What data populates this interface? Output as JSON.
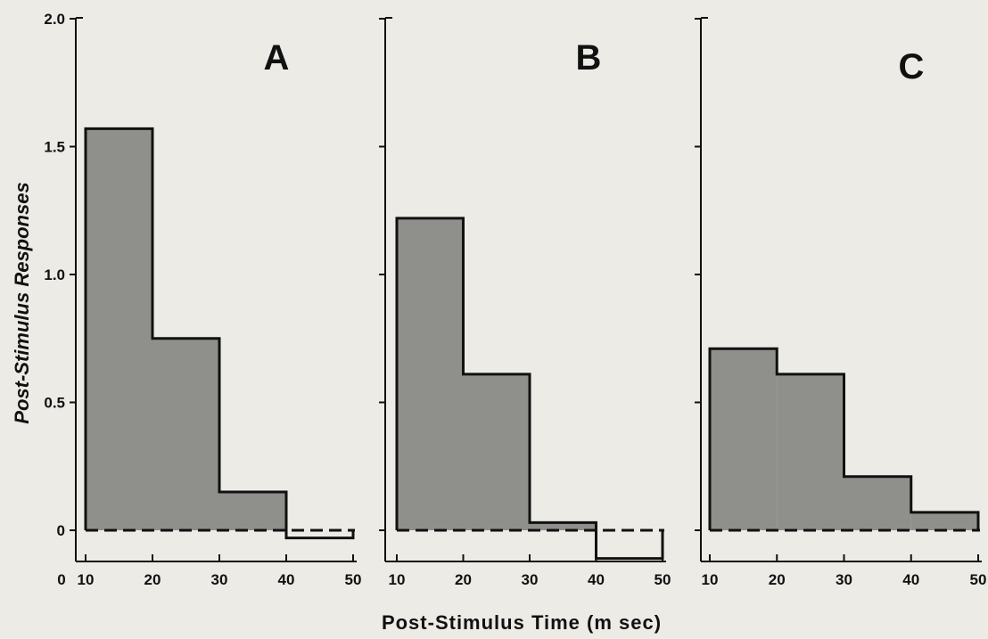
{
  "chart_data": {
    "type": "bar",
    "xlabel": "Post-Stimulus Time (m sec)",
    "ylabel": "Post-Stimulus Responses",
    "ylim": [
      -0.1,
      2.0
    ],
    "y_ticks": [
      "0",
      "0.5",
      "1.0",
      "1.5",
      "2.0"
    ],
    "y_tick_values": [
      0,
      0.5,
      1.0,
      1.5,
      2.0
    ],
    "bin_edges": [
      10,
      20,
      30,
      40,
      50
    ],
    "colors": {
      "bar_fill": "#8f8f8b",
      "line": "#111111"
    },
    "panels": [
      {
        "label": "A",
        "x_tick_labels": [
          "0",
          "10",
          "20",
          "30",
          "40",
          "50"
        ],
        "x_tick_values": [
          0,
          10,
          20,
          30,
          40,
          50
        ],
        "values": [
          1.57,
          0.75,
          0.15,
          -0.03
        ]
      },
      {
        "label": "B",
        "x_tick_labels": [
          "10",
          "20",
          "30",
          "40",
          "50"
        ],
        "x_tick_values": [
          10,
          20,
          30,
          40,
          50
        ],
        "values": [
          1.22,
          0.61,
          0.03,
          -0.11
        ]
      },
      {
        "label": "C",
        "x_tick_labels": [
          "10",
          "20",
          "30",
          "40",
          "50"
        ],
        "x_tick_values": [
          10,
          20,
          30,
          40,
          50
        ],
        "values": [
          0.71,
          0.61,
          0.21,
          0.07
        ]
      }
    ]
  }
}
